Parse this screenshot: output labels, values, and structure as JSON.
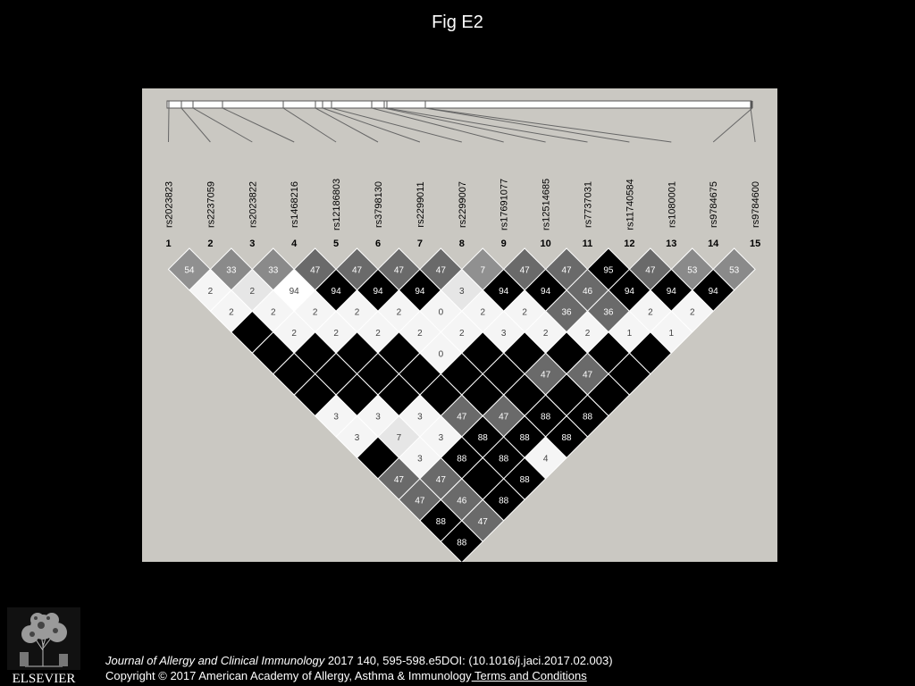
{
  "title": "Fig E2",
  "diagram": {
    "markers": [
      "rs2023823",
      "rs2237059",
      "rs2023822",
      "rs1468216",
      "rs12186803",
      "rs3798130",
      "rs2299011",
      "rs2299007",
      "rs17691077",
      "rs12514685",
      "rs7737031",
      "rs11740584",
      "rs1080001",
      "rs9784675",
      "rs9784600"
    ],
    "marker_numbers": [
      "1",
      "2",
      "3",
      "4",
      "5",
      "6",
      "7",
      "8",
      "9",
      "10",
      "11",
      "12",
      "13",
      "14",
      "15"
    ],
    "ld_matrix": [
      [
        "54",
        "33",
        "33",
        "47",
        "47",
        "47",
        "47",
        "7",
        "47",
        "47",
        "95",
        "47",
        "53",
        "53"
      ],
      [
        "2",
        "2",
        "94",
        "94",
        "94",
        "94",
        "3",
        "94",
        "94",
        "46",
        "94",
        "94",
        "94"
      ],
      [
        "2",
        "2",
        "2",
        "2",
        "2",
        "0",
        "2",
        "2",
        "36",
        "36",
        "2",
        "2"
      ],
      [
        "",
        "2",
        "2",
        "2",
        "2",
        "2",
        "3",
        "2",
        "2",
        "1",
        "1"
      ],
      [
        "",
        "",
        "",
        "",
        "0",
        "",
        "",
        "",
        "",
        ""
      ],
      [
        "",
        "",
        "",
        "",
        "",
        "",
        "47",
        "47",
        ""
      ],
      [
        "",
        "",
        "",
        "",
        "",
        "",
        "",
        ""
      ],
      [
        "3",
        "3",
        "3",
        "47",
        "47",
        "88",
        "88"
      ],
      [
        "3",
        "7",
        "3",
        "88",
        "88",
        "88"
      ],
      [
        "",
        "3",
        "88",
        "88",
        "4"
      ],
      [
        "47",
        "47",
        "",
        "88"
      ],
      [
        "47",
        "46",
        "88"
      ],
      [
        "88",
        "47"
      ],
      [
        "88"
      ]
    ],
    "ld_shade": [
      [
        2,
        3,
        3,
        4,
        4,
        4,
        4,
        2,
        4,
        4,
        6,
        4,
        3,
        3
      ],
      [
        0,
        1,
        5,
        6,
        6,
        6,
        1,
        6,
        6,
        4,
        6,
        6,
        6
      ],
      [
        0,
        0,
        0,
        0,
        0,
        0,
        0,
        0,
        4,
        4,
        0,
        0
      ],
      [
        6,
        0,
        0,
        0,
        0,
        0,
        0,
        0,
        0,
        0,
        0
      ],
      [
        6,
        6,
        6,
        6,
        0,
        6,
        6,
        6,
        6,
        6
      ],
      [
        6,
        6,
        6,
        6,
        6,
        6,
        4,
        4,
        6
      ],
      [
        6,
        6,
        6,
        6,
        6,
        6,
        6,
        6
      ],
      [
        0,
        0,
        0,
        4,
        4,
        6,
        6
      ],
      [
        0,
        1,
        0,
        6,
        6,
        6
      ],
      [
        6,
        0,
        6,
        6,
        0
      ],
      [
        4,
        4,
        6,
        6
      ],
      [
        4,
        4,
        6
      ],
      [
        6,
        4
      ],
      [
        6
      ]
    ]
  },
  "citation": {
    "journal": "Journal of Allergy and Clinical Immunology",
    "details": " 2017 140, 595-598.e5DOI: (10.1016/j.jaci.2017.02.003)",
    "copyright": "Copyright © 2017 American Academy of Allergy, Asthma & Immunology",
    "terms_link": " Terms and Conditions"
  },
  "publisher_logo_text": "ELSEVIER",
  "colors": {
    "page_background": "#000000",
    "panel_background": "#cac8c2",
    "shades": [
      "#f5f5f5",
      "#e6e6e6",
      "#909090",
      "#8a8a8a",
      "#6a6a6a",
      "#ffffff",
      "#000000"
    ]
  }
}
